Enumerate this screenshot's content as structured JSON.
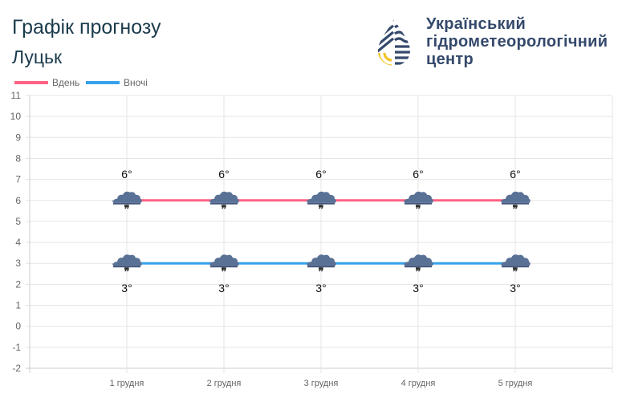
{
  "header": {
    "title": "Графік прогнозу",
    "city": "Луцьк"
  },
  "logo": {
    "line1": "Український",
    "line2": "гідрометеорологічний",
    "line3": "центр"
  },
  "chart_data": {
    "type": "line",
    "categories": [
      "1 грудня",
      "2 грудня",
      "3 грудня",
      "4 грудня",
      "5 грудня"
    ],
    "series": [
      {
        "name": "Вдень",
        "values": [
          6,
          6,
          6,
          6,
          6
        ],
        "color": "#ff6384",
        "labels": [
          "6°",
          "6°",
          "6°",
          "6°",
          "6°"
        ]
      },
      {
        "name": "Вночі",
        "values": [
          3,
          3,
          3,
          3,
          3
        ],
        "color": "#36a2eb",
        "labels": [
          "3°",
          "3°",
          "3°",
          "3°",
          "3°"
        ]
      }
    ],
    "point_icon": "cloud-rain-icon",
    "ylim": [
      -2,
      11
    ],
    "yticks": [
      11,
      10,
      9,
      8,
      7,
      6,
      5,
      4,
      3,
      2,
      1,
      0,
      -1,
      -2
    ],
    "grid": true,
    "legend": "top-left"
  }
}
